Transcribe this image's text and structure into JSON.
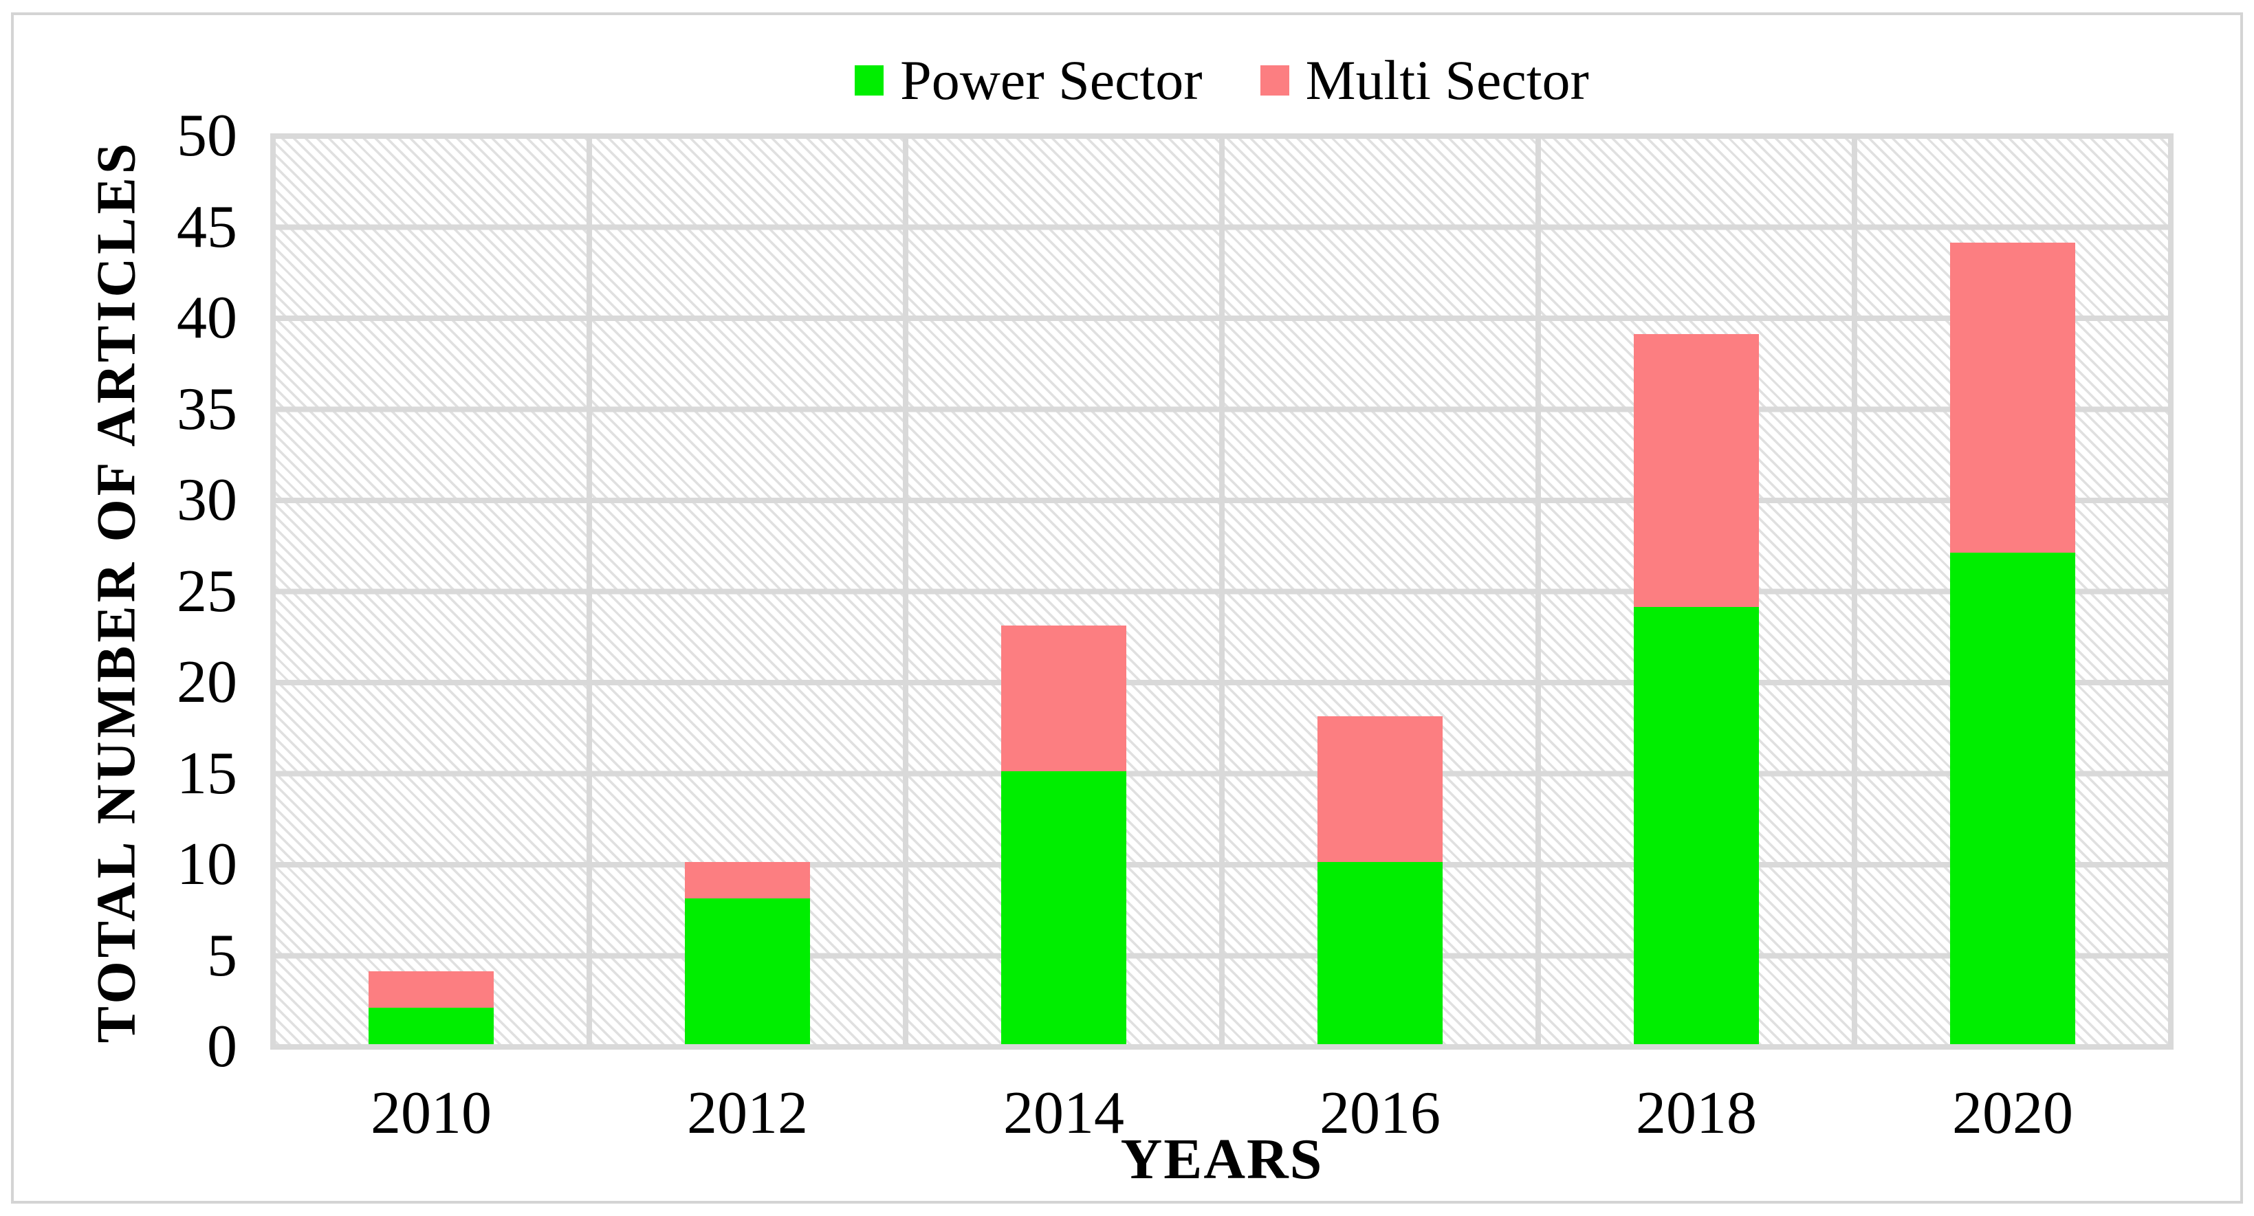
{
  "figure": {
    "y_axis_title": "TOTAL NUMBER OF ARTICLES",
    "x_axis_title": "YEARS"
  },
  "legend": {
    "position": "top-center",
    "items": [
      {
        "label": "Power Sector",
        "color": "#00EE00"
      },
      {
        "label": "Multi Sector",
        "color": "#FC7E81"
      }
    ]
  },
  "colors": {
    "power_sector": "#00EE00",
    "multi_sector": "#FC7E81",
    "gridline": "#D9D9D9",
    "hatch": "#E0E0E0",
    "frame_border": "#D4D4D4",
    "text": "#000000"
  },
  "chart_data": {
    "type": "bar",
    "stacked": true,
    "title": "",
    "xlabel": "YEARS",
    "ylabel": "TOTAL NUMBER OF ARTICLES",
    "categories": [
      "2010",
      "2012",
      "2014",
      "2016",
      "2018",
      "2020"
    ],
    "series": [
      {
        "name": "Power Sector",
        "color": "#00EE00",
        "values": [
          2,
          8,
          15,
          10,
          24,
          27
        ]
      },
      {
        "name": "Multi Sector",
        "color": "#FC7E81",
        "values": [
          2,
          2,
          8,
          8,
          15,
          17
        ]
      }
    ],
    "totals": [
      4,
      10,
      23,
      18,
      39,
      44
    ],
    "ylim": [
      0,
      50
    ],
    "ytick_step": 5,
    "yticks": [
      0,
      5,
      10,
      15,
      20,
      25,
      30,
      35,
      40,
      45,
      50
    ],
    "grid": true,
    "plot_background": "light-gray diagonal hatch pattern",
    "legend_position": "top-center"
  }
}
